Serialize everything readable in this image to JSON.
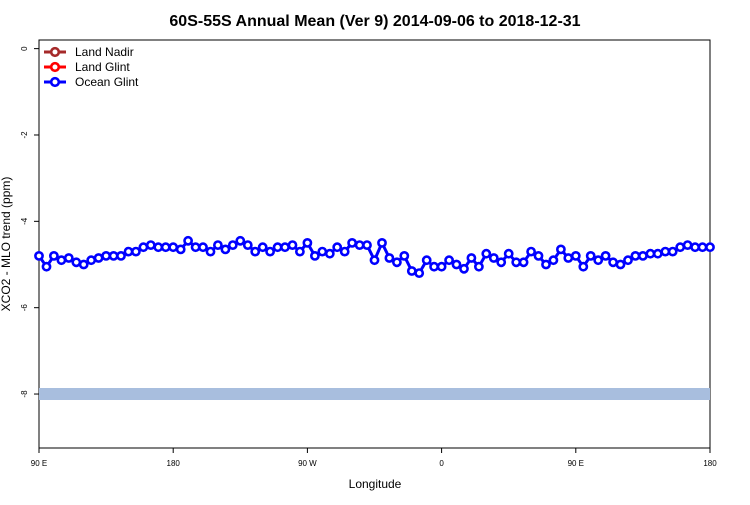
{
  "chart_data": {
    "type": "line",
    "title": "60S-55S Annual Mean (Ver 9)   2014-09-06 to 2018-12-31",
    "xlabel": "Longitude",
    "ylabel": "XCO2 - MLO trend (ppm)",
    "xlim": [
      0,
      90
    ],
    "ylim": [
      -9.25,
      0.2
    ],
    "x_ticks": [
      {
        "value": 0,
        "label": "90 E"
      },
      {
        "value": 18,
        "label": "180"
      },
      {
        "value": 36,
        "label": "90 W"
      },
      {
        "value": 54,
        "label": "0"
      },
      {
        "value": 72,
        "label": "90 E"
      },
      {
        "value": 90,
        "label": "180"
      }
    ],
    "y_ticks": [
      {
        "value": 0,
        "label": "0"
      },
      {
        "value": -2,
        "label": "-2"
      },
      {
        "value": -4,
        "label": "-4"
      },
      {
        "value": -6,
        "label": "-6"
      },
      {
        "value": -8,
        "label": "-8"
      }
    ],
    "legend_position": "top-left",
    "grid": false,
    "series": [
      {
        "name": "Land Nadir",
        "color": "#a52a2a",
        "values": []
      },
      {
        "name": "Land Glint",
        "color": "#ff0000",
        "values": []
      },
      {
        "name": "Ocean Glint",
        "color": "#0000ff",
        "x": [
          0,
          1,
          2,
          3,
          4,
          5,
          6,
          7,
          8,
          9,
          10,
          11,
          12,
          13,
          14,
          15,
          16,
          17,
          18,
          19,
          20,
          21,
          22,
          23,
          24,
          25,
          26,
          27,
          28,
          29,
          30,
          31,
          32,
          33,
          34,
          35,
          36,
          37,
          38,
          39,
          40,
          41,
          42,
          43,
          44,
          45,
          46,
          47,
          48,
          49,
          50,
          51,
          52,
          53,
          54,
          55,
          56,
          57,
          58,
          59,
          60,
          61,
          62,
          63,
          64,
          65,
          66,
          67,
          68,
          69,
          70,
          71,
          72,
          73,
          74,
          75,
          76,
          77,
          78,
          79,
          80,
          81,
          82,
          83,
          84,
          85,
          86,
          87,
          88,
          89,
          90
        ],
        "values": [
          -4.8,
          -5.05,
          -4.8,
          -4.9,
          -4.85,
          -4.95,
          -5.0,
          -4.9,
          -4.85,
          -4.8,
          -4.8,
          -4.8,
          -4.7,
          -4.7,
          -4.6,
          -4.55,
          -4.6,
          -4.6,
          -4.6,
          -4.65,
          -4.45,
          -4.6,
          -4.6,
          -4.7,
          -4.55,
          -4.65,
          -4.55,
          -4.45,
          -4.55,
          -4.7,
          -4.6,
          -4.7,
          -4.6,
          -4.6,
          -4.55,
          -4.7,
          -4.5,
          -4.8,
          -4.7,
          -4.75,
          -4.6,
          -4.7,
          -4.5,
          -4.55,
          -4.55,
          -4.9,
          -4.5,
          -4.85,
          -4.95,
          -4.8,
          -5.15,
          -5.2,
          -4.9,
          -5.05,
          -5.05,
          -4.9,
          -5.0,
          -5.1,
          -4.85,
          -5.05,
          -4.75,
          -4.85,
          -4.95,
          -4.75,
          -4.95,
          -4.95,
          -4.7,
          -4.8,
          -5.0,
          -4.9,
          -4.65,
          -4.85,
          -4.8,
          -5.05,
          -4.8,
          -4.9,
          -4.8,
          -4.95,
          -5.0,
          -4.9,
          -4.8,
          -4.8,
          -4.75,
          -4.75,
          -4.7,
          -4.7,
          -4.6,
          -4.55,
          -4.6,
          -4.6,
          -4.6
        ]
      },
      {
        "name": "",
        "color": "#a8bede",
        "x": [
          0,
          90
        ],
        "values": [
          -8.0,
          -8.0
        ]
      }
    ]
  }
}
